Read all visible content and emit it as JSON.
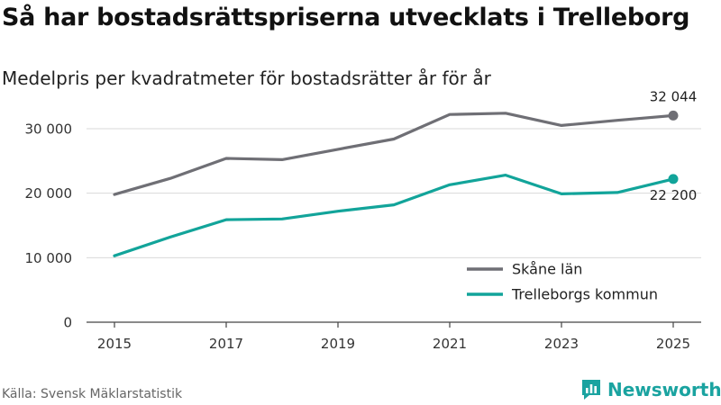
{
  "header": {
    "title": "Så har bostadsrättspriserna utvecklats i Trelleborg",
    "subtitle": "Medelpris per kvadratmeter för bostadsrätter år för år"
  },
  "footer": {
    "source": "Källa: Svensk Mäklarstatistik",
    "brand": "Newsworthy"
  },
  "colors": {
    "skane": "#6f6f75",
    "trelleborg": "#12a49a",
    "grid": "#d9d9d9",
    "axis": "#444444",
    "brand": "#1aa3a0"
  },
  "chart_data": {
    "type": "line",
    "title": "Så har bostadsrättspriserna utvecklats i Trelleborg",
    "subtitle": "Medelpris per kvadratmeter för bostadsrätter år för år",
    "xlabel": "",
    "ylabel": "",
    "x": [
      2015,
      2016,
      2017,
      2018,
      2019,
      2020,
      2021,
      2022,
      2023,
      2024,
      2025
    ],
    "xticks": [
      "2015",
      "2017",
      "2019",
      "2021",
      "2023",
      "2025"
    ],
    "yticks": [
      {
        "value": 0,
        "label": "0"
      },
      {
        "value": 10000,
        "label": "10 000"
      },
      {
        "value": 20000,
        "label": "20 000"
      },
      {
        "value": 30000,
        "label": "30 000"
      }
    ],
    "xlim": [
      2014.5,
      2025.5
    ],
    "ylim": [
      0,
      36000
    ],
    "grid": true,
    "legend_position": "bottom-right",
    "series": [
      {
        "name": "Skåne län",
        "key": "skane",
        "values": [
          19800,
          22300,
          25400,
          25200,
          26800,
          28400,
          32200,
          32400,
          30500,
          31300,
          32044
        ],
        "end_label": "32 044",
        "end_label_position": "above"
      },
      {
        "name": "Trelleborgs kommun",
        "key": "trelleborg",
        "values": [
          10300,
          13200,
          15900,
          16000,
          17200,
          18200,
          21300,
          22800,
          19900,
          20100,
          22200
        ],
        "end_label": "22 200",
        "end_label_position": "below"
      }
    ]
  }
}
